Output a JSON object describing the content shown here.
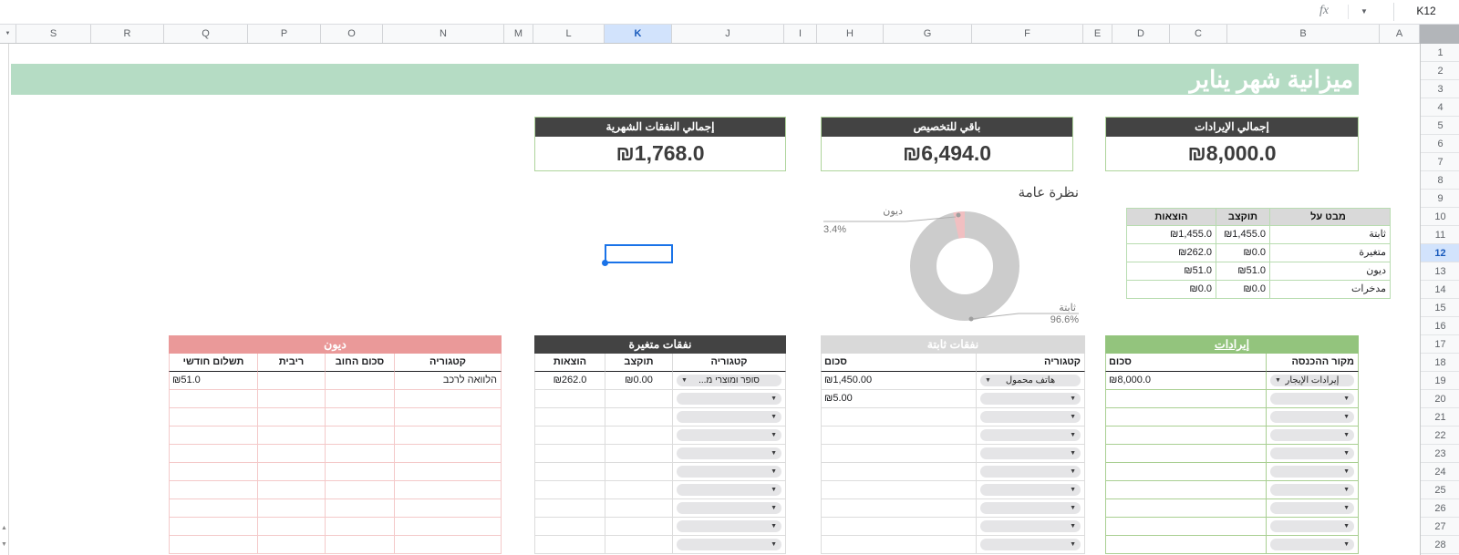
{
  "toolbar": {
    "fx_label": "fx",
    "name_box": "K12"
  },
  "grid": {
    "columns": [
      "S",
      "R",
      "Q",
      "P",
      "O",
      "N",
      "M",
      "L",
      "K",
      "J",
      "I",
      "H",
      "G",
      "F",
      "E",
      "D",
      "C",
      "B",
      "A"
    ],
    "selected_column": "K",
    "row_numbers": [
      "1",
      "2",
      "3",
      "4",
      "5",
      "6",
      "7",
      "8",
      "9",
      "10",
      "11",
      "12",
      "13",
      "14",
      "15",
      "16",
      "17",
      "18",
      "19",
      "20",
      "21",
      "22",
      "23",
      "24",
      "25",
      "26",
      "27",
      "28"
    ],
    "selected_row": "12",
    "selected_cell": "K12"
  },
  "title": "ميزانية شهر يناير",
  "cards": [
    {
      "label": "إجمالي النفقات الشهرية",
      "value": "₪1,768.0"
    },
    {
      "label": "باقي للتخصيص",
      "value": "₪6,494.0"
    },
    {
      "label": "إجمالي الإيرادات",
      "value": "₪8,000.0"
    }
  ],
  "chart_data": {
    "type": "pie",
    "donut": true,
    "title": "نظرة عامة",
    "legend_position": "callouts",
    "slices": [
      {
        "label": "ديون",
        "value": 3.4,
        "pct_label": "3.4%",
        "color": "#f1bfc1"
      },
      {
        "label": "ثابتة",
        "value": 96.6,
        "pct_label": "96.6%",
        "color": "#cccccc"
      }
    ]
  },
  "overview_table": {
    "headers": [
      "הוצאות",
      "תוקצב",
      "מבט על"
    ],
    "rows": [
      {
        "expenses": "₪1,455.0",
        "budgeted": "₪1,455.0",
        "name": "ثابتة"
      },
      {
        "expenses": "₪262.0",
        "budgeted": "₪0.0",
        "name": "متغيرة"
      },
      {
        "expenses": "₪51.0",
        "budgeted": "₪51.0",
        "name": "ديون"
      },
      {
        "expenses": "₪0.0",
        "budgeted": "₪0.0",
        "name": "مدخرات"
      }
    ]
  },
  "tables": {
    "debts": {
      "title": "ديون",
      "headers": [
        "תשלום חודשי",
        "ריבית",
        "סכום החוב",
        "קטגוריה"
      ],
      "rows": [
        [
          "₪51.0",
          "",
          "",
          "הלוואה לרכב"
        ]
      ]
    },
    "variable": {
      "title": "نفقات متغيرة",
      "headers": [
        "הוצאות",
        "תוקצב",
        "קטגוריה"
      ],
      "rows": [
        [
          "₪262.0",
          "₪0.00",
          "סופר ומוצרי מ..."
        ]
      ]
    },
    "fixed": {
      "title": "نفقات ثابتة",
      "headers": [
        "סכום",
        "קטגוריה"
      ],
      "rows": [
        [
          "₪1,450.00",
          "هاتف محمول"
        ],
        [
          "₪5.00",
          ""
        ]
      ]
    },
    "income": {
      "title": "إيرادات",
      "headers": [
        "סכום",
        "מקור ההכנסה"
      ],
      "rows": [
        [
          "₪8,000.0",
          "إيرادات الإيجار"
        ]
      ]
    }
  },
  "colors": {
    "title_band": "#b5dcc4",
    "dark_header": "#434343",
    "debts_band": "#ea9999",
    "fixed_band": "#d9d9d9",
    "income_band": "#93c47d",
    "selection": "#1a73e8",
    "donut_gray": "#cccccc",
    "donut_pink": "#f1bfc1"
  }
}
